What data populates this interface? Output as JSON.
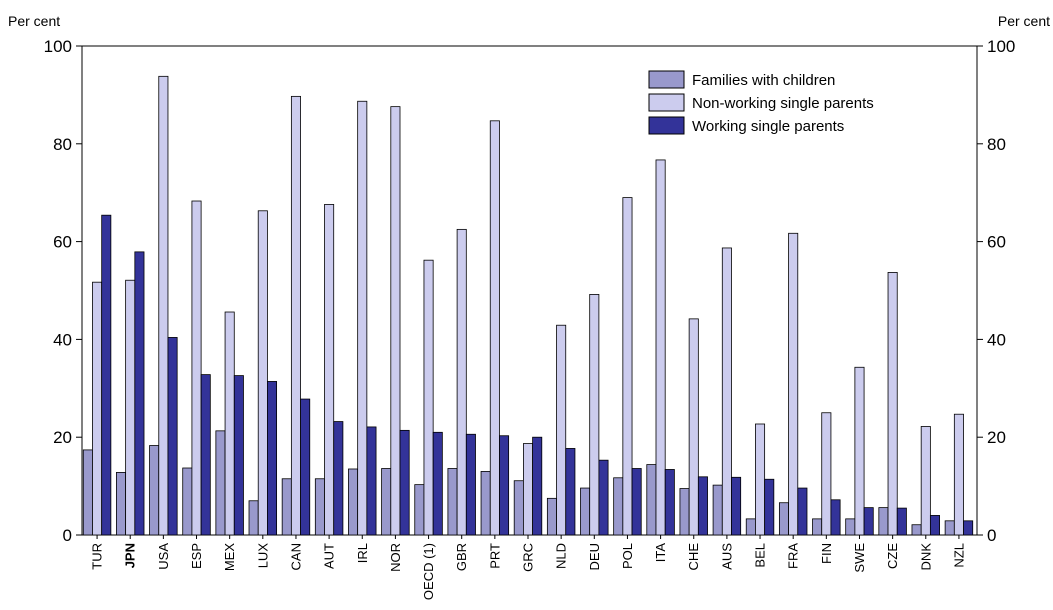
{
  "chart_data": {
    "type": "bar",
    "ylabel_left": "Per cent",
    "ylabel_right": "Per cent",
    "ylim": [
      0,
      100
    ],
    "yticks": [
      0,
      20,
      40,
      60,
      80,
      100
    ],
    "highlight_category": "JPN",
    "grid": false,
    "legend_position": "top-right",
    "categories": [
      "TUR",
      "JPN",
      "USA",
      "ESP",
      "MEX",
      "LUX",
      "CAN",
      "AUT",
      "IRL",
      "NOR",
      "OECD (1)",
      "GBR",
      "PRT",
      "GRC",
      "NLD",
      "DEU",
      "POL",
      "ITA",
      "CHE",
      "AUS",
      "BEL",
      "FRA",
      "FIN",
      "SWE",
      "CZE",
      "DNK",
      "NZL"
    ],
    "series": [
      {
        "name": "Families with children",
        "color": "#9999cc",
        "values": [
          17.4,
          12.8,
          18.3,
          13.7,
          21.3,
          7.0,
          11.5,
          11.5,
          13.5,
          13.6,
          10.3,
          13.6,
          13.0,
          11.1,
          7.5,
          9.6,
          11.7,
          14.4,
          9.5,
          10.2,
          3.3,
          6.6,
          3.3,
          3.3,
          5.6,
          2.1,
          2.9
        ]
      },
      {
        "name": "Non-working single parents",
        "color": "#ccccee",
        "values": [
          51.7,
          52.1,
          93.8,
          68.3,
          45.6,
          66.3,
          89.7,
          67.6,
          88.7,
          87.6,
          56.2,
          62.5,
          84.7,
          18.7,
          42.9,
          49.2,
          69.0,
          76.7,
          44.2,
          58.7,
          22.7,
          61.7,
          25.0,
          34.3,
          53.7,
          22.2,
          24.7
        ]
      },
      {
        "name": "Working single parents",
        "color": "#333399",
        "values": [
          65.4,
          57.9,
          40.4,
          32.8,
          32.6,
          31.4,
          27.8,
          23.2,
          22.1,
          21.4,
          21.0,
          20.6,
          20.3,
          20.0,
          17.7,
          15.3,
          13.6,
          13.4,
          11.9,
          11.8,
          11.4,
          9.6,
          7.2,
          5.6,
          5.5,
          4.0,
          2.9
        ]
      }
    ]
  }
}
